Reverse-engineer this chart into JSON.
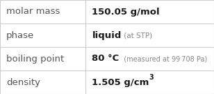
{
  "rows": [
    {
      "label": "molar mass",
      "value_parts": [
        {
          "text": "150.05 g/mol",
          "fontsize": 9.5,
          "bold": true,
          "color": "#1a1a1a",
          "superscript": false
        }
      ]
    },
    {
      "label": "phase",
      "value_parts": [
        {
          "text": "liquid",
          "fontsize": 9.5,
          "bold": true,
          "color": "#1a1a1a",
          "superscript": false
        },
        {
          "text": " (at STP)",
          "fontsize": 7.5,
          "bold": false,
          "color": "#888888",
          "superscript": false
        }
      ]
    },
    {
      "label": "boiling point",
      "value_parts": [
        {
          "text": "80 °C",
          "fontsize": 9.5,
          "bold": true,
          "color": "#1a1a1a",
          "superscript": false
        },
        {
          "text": "  (measured at 99 708 Pa)",
          "fontsize": 7.0,
          "bold": false,
          "color": "#888888",
          "superscript": false
        }
      ]
    },
    {
      "label": "density",
      "value_parts": [
        {
          "text": "1.505 g/cm",
          "fontsize": 9.5,
          "bold": true,
          "color": "#1a1a1a",
          "superscript": false
        },
        {
          "text": "3",
          "fontsize": 7.0,
          "bold": true,
          "color": "#1a1a1a",
          "superscript": true
        }
      ]
    }
  ],
  "label_fontsize": 9.5,
  "label_color": "#555555",
  "background_color": "#ffffff",
  "line_color": "#cccccc",
  "col_split": 0.4,
  "fig_width": 3.08,
  "fig_height": 1.36,
  "dpi": 100
}
